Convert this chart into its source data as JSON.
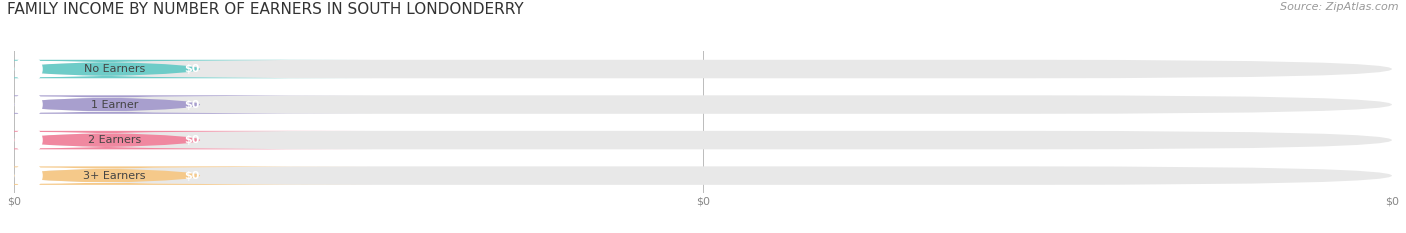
{
  "title": "FAMILY INCOME BY NUMBER OF EARNERS IN SOUTH LONDONDERRY",
  "source": "Source: ZipAtlas.com",
  "categories": [
    "No Earners",
    "1 Earner",
    "2 Earners",
    "3+ Earners"
  ],
  "values": [
    0,
    0,
    0,
    0
  ],
  "bar_colors": [
    "#6eccc8",
    "#a89fce",
    "#f088a0",
    "#f5c98a"
  ],
  "background_color": "#ffffff",
  "bar_bg_color": "#e8e8e8",
  "tick_labels": [
    "$0",
    "$0"
  ],
  "value_label": "$0",
  "title_fontsize": 11,
  "source_fontsize": 8
}
